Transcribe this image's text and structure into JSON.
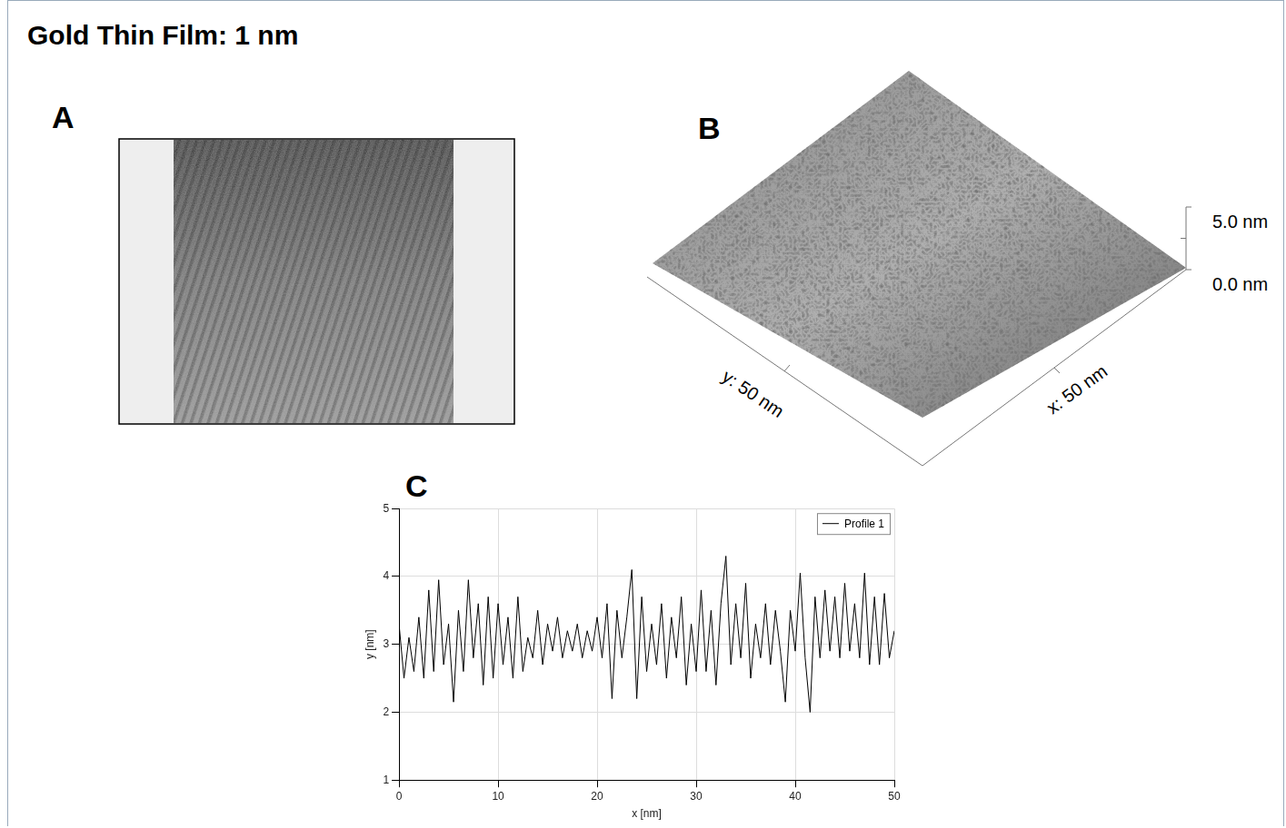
{
  "title": "Gold Thin Film: 1 nm",
  "panel_a": {
    "letter": "A"
  },
  "panel_b": {
    "letter": "B",
    "x_label": "x: 50 nm",
    "y_label": "y: 50 nm",
    "zlim": [
      0,
      5
    ],
    "zticks": [
      {
        "value": 5,
        "label": "5.0 nm"
      },
      {
        "value": 0,
        "label": "0.0 nm"
      }
    ]
  },
  "panel_c": {
    "letter": "C"
  },
  "chart_data": {
    "type": "line",
    "x_label": "x [nm]",
    "y_label": "y [nm]",
    "x": [
      0,
      0.5,
      1,
      1.5,
      2,
      2.5,
      3,
      3.5,
      4,
      4.5,
      5,
      5.5,
      6,
      6.5,
      7,
      7.5,
      8,
      8.5,
      9,
      9.5,
      10,
      10.5,
      11,
      11.5,
      12,
      12.5,
      13,
      13.5,
      14,
      14.5,
      15,
      15.5,
      16,
      16.5,
      17,
      17.5,
      18,
      18.5,
      19,
      19.5,
      20,
      20.5,
      21,
      21.5,
      22,
      22.5,
      23,
      23.5,
      24,
      24.5,
      25,
      25.5,
      26,
      26.5,
      27,
      27.5,
      28,
      28.5,
      29,
      29.5,
      30,
      30.5,
      31,
      31.5,
      32,
      32.5,
      33,
      33.5,
      34,
      34.5,
      35,
      35.5,
      36,
      36.5,
      37,
      37.5,
      38,
      38.5,
      39,
      39.5,
      40,
      40.5,
      41,
      41.5,
      42,
      42.5,
      43,
      43.5,
      44,
      44.5,
      45,
      45.5,
      46,
      46.5,
      47,
      47.5,
      48,
      48.5,
      49,
      49.5,
      50
    ],
    "series": [
      {
        "name": "Profile 1",
        "color": "#000000",
        "values": [
          3.3,
          2.5,
          3.1,
          2.6,
          3.4,
          2.5,
          3.8,
          2.6,
          3.95,
          2.7,
          3.3,
          2.15,
          3.5,
          2.6,
          3.95,
          2.8,
          3.6,
          2.4,
          3.7,
          2.5,
          3.6,
          2.7,
          3.4,
          2.5,
          3.7,
          2.6,
          3.1,
          2.8,
          3.5,
          2.7,
          3.3,
          2.9,
          3.4,
          2.8,
          3.2,
          2.9,
          3.3,
          2.8,
          3.2,
          2.9,
          3.4,
          2.8,
          3.6,
          2.2,
          3.5,
          2.8,
          3.4,
          4.1,
          2.2,
          3.7,
          2.6,
          3.3,
          2.7,
          3.6,
          2.5,
          3.4,
          2.8,
          3.7,
          2.4,
          3.3,
          2.6,
          3.8,
          2.6,
          3.5,
          2.4,
          3.6,
          4.3,
          2.7,
          3.6,
          2.8,
          3.9,
          2.5,
          3.3,
          2.8,
          3.6,
          2.7,
          3.5,
          2.9,
          2.15,
          3.5,
          2.9,
          4.05,
          2.8,
          2.0,
          3.7,
          2.8,
          3.8,
          2.9,
          3.7,
          2.8,
          3.9,
          2.9,
          3.6,
          2.8,
          4.05,
          2.7,
          3.7,
          2.7,
          3.75,
          2.8,
          3.2
        ]
      }
    ],
    "xlim": [
      0,
      50
    ],
    "xticks": [
      0,
      10,
      20,
      30,
      40,
      50
    ],
    "ylim": [
      1,
      5
    ],
    "yticks": [
      1,
      2,
      3,
      4,
      5
    ],
    "grid": true,
    "legend": "upper right"
  }
}
